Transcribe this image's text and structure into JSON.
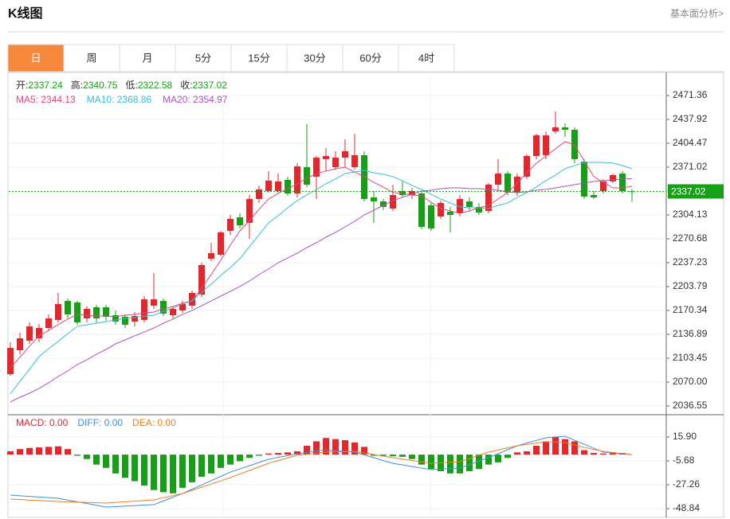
{
  "header": {
    "title": "K线图",
    "link": "基本面分析>"
  },
  "tabs": {
    "items": [
      "日",
      "周",
      "月",
      "5分",
      "15分",
      "30分",
      "60分",
      "4时"
    ],
    "active": 0,
    "active_color": "#f5883b"
  },
  "chart_data": [
    {
      "type": "candlestick",
      "ylim": [
        2025.4,
        2502.57
      ],
      "yticks": [
        2471.36,
        2437.92,
        2404.47,
        2371.02,
        2304.13,
        2270.68,
        2237.23,
        2203.79,
        2170.34,
        2136.89,
        2103.45,
        {
          "value": 2070,
          "label": "2070.00"
        },
        2036.55
      ],
      "grid": true,
      "up_color": "#e8262a",
      "down_color": "#16a016",
      "readout": [
        {
          "label": "开:",
          "value": "2337.24"
        },
        {
          "label": "高:",
          "value": "2340.75"
        },
        {
          "label": "低:",
          "value": "2322.58"
        },
        {
          "label": "收:",
          "value": "2337.02"
        }
      ],
      "readout_value_color": "#16a016",
      "last_price": 2337.02,
      "last_price_color": "#16a016",
      "open": [
        2081.1,
        2114.6,
        2127.9,
        2131.3,
        2145.8,
        2157.0,
        2183.7,
        2181.5,
        2159.2,
        2174.8,
        2174.8,
        2163.6,
        2161.4,
        2154.7,
        2157.0,
        2177.0,
        2183.7,
        2163.6,
        2170.3,
        2177.0,
        2192.6,
        2242.8,
        2248.4,
        2281.8,
        2300.8,
        2293.0,
        2326.4,
        2337.6,
        2337.6,
        2353.2,
        2334.2,
        2371.0,
        2357.7,
        2382.2,
        2371.0,
        2384.4,
        2371.0,
        2387.8,
        2328.7,
        2323.1,
        2313.0,
        2337.6,
        2332.0,
        2334.2,
        2317.5,
        2301.9,
        2308.6,
        2306.4,
        2323.1,
        2315.3,
        2309.7,
        2346.5,
        2362.1,
        2335.4,
        2357.7,
        2386.6,
        2387.8,
        2421.2,
        2426.8,
        2423.4,
        2378.8,
        2332.0,
        2337.6,
        2351.0,
        2362.1,
        2337.24
      ],
      "high": [
        2125.7,
        2139.1,
        2153.6,
        2151.4,
        2164.8,
        2194.9,
        2187.1,
        2183.7,
        2175.9,
        2178.1,
        2178.1,
        2170.3,
        2164.8,
        2168.1,
        2190.4,
        2222.7,
        2187.1,
        2175.9,
        2183.7,
        2198.2,
        2237.2,
        2265.1,
        2281.8,
        2304.1,
        2306.4,
        2332.0,
        2345.4,
        2365.5,
        2362.1,
        2357.7,
        2376.6,
        2431.2,
        2386.6,
        2397.8,
        2393.3,
        2410.0,
        2417.9,
        2393.3,
        2337.6,
        2326.4,
        2346.5,
        2351.0,
        2342.0,
        2337.6,
        2320.9,
        2324.2,
        2315.3,
        2332.0,
        2328.7,
        2320.9,
        2348.7,
        2382.2,
        2365.5,
        2362.1,
        2388.9,
        2417.9,
        2421.2,
        2449.1,
        2432.3,
        2426.8,
        2382.2,
        2337.6,
        2354.3,
        2362.1,
        2365.5,
        2340.75
      ],
      "low": [
        2078.9,
        2109.0,
        2123.5,
        2125.7,
        2142.4,
        2153.6,
        2159.2,
        2150.3,
        2153.6,
        2153.6,
        2155.8,
        2150.3,
        2145.8,
        2148.0,
        2153.6,
        2172.6,
        2162.5,
        2159.2,
        2167.0,
        2172.6,
        2189.3,
        2239.5,
        2246.1,
        2276.3,
        2285.2,
        2270.7,
        2320.9,
        2335.4,
        2335.4,
        2330.9,
        2328.7,
        2343.2,
        2326.4,
        2365.5,
        2367.7,
        2371.0,
        2367.7,
        2323.1,
        2293.0,
        2310.8,
        2309.7,
        2328.7,
        2326.4,
        2284.1,
        2281.8,
        2298.6,
        2279.6,
        2301.9,
        2309.7,
        2304.1,
        2306.4,
        2337.6,
        2332.0,
        2330.9,
        2354.3,
        2382.2,
        2382.2,
        2417.9,
        2413.4,
        2376.6,
        2326.4,
        2326.4,
        2334.2,
        2348.7,
        2334.2,
        2322.58
      ],
      "close": [
        2117.9,
        2131.3,
        2148.0,
        2145.8,
        2159.2,
        2179.3,
        2164.8,
        2153.6,
        2172.6,
        2159.2,
        2161.4,
        2154.7,
        2150.3,
        2162.5,
        2185.9,
        2185.9,
        2165.9,
        2172.6,
        2179.3,
        2194.9,
        2233.9,
        2250.6,
        2279.6,
        2298.6,
        2289.6,
        2326.4,
        2339.8,
        2352.1,
        2351.0,
        2334.2,
        2372.1,
        2346.5,
        2384.4,
        2386.6,
        2384.4,
        2393.3,
        2387.8,
        2326.4,
        2323.1,
        2315.3,
        2332.0,
        2332.0,
        2337.6,
        2287.4,
        2285.2,
        2320.9,
        2304.1,
        2326.4,
        2315.3,
        2307.5,
        2346.5,
        2362.1,
        2335.4,
        2357.7,
        2386.6,
        2415.6,
        2415.6,
        2426.8,
        2423.4,
        2382.2,
        2329.8,
        2328.7,
        2351.0,
        2359.9,
        2337.6,
        2337.02
      ],
      "series": [
        {
          "label": "MA5: 2344.13",
          "color": "#e8457a",
          "values": [
            2090.1,
            2104.6,
            2120.2,
            2134.7,
            2142.4,
            2150.3,
            2158.1,
            2164.8,
            2163.6,
            2162.5,
            2162.5,
            2161.4,
            2163.6,
            2164.8,
            2167.0,
            2168.1,
            2172.6,
            2175.9,
            2180.4,
            2183.7,
            2201.6,
            2220.5,
            2240.6,
            2261.8,
            2281.8,
            2296.3,
            2311.9,
            2326.4,
            2334.2,
            2340.9,
            2347.6,
            2355.4,
            2362.1,
            2365.5,
            2368.8,
            2371.0,
            2364.3,
            2357.7,
            2349.8,
            2343.2,
            2335.4,
            2334.2,
            2332.0,
            2330.9,
            2322.0,
            2313.0,
            2309.7,
            2306.4,
            2309.7,
            2314.2,
            2317.5,
            2326.4,
            2335.4,
            2348.7,
            2363.2,
            2376.6,
            2386.6,
            2396.7,
            2406.7,
            2402.3,
            2379.9,
            2357.7,
            2349.8,
            2342.0,
            2342.0,
            2344.13
          ]
        },
        {
          "label": "MA10: 2368.86",
          "color": "#35bfd6",
          "values": [
            2053.3,
            2071.1,
            2087.8,
            2105.7,
            2116.8,
            2126.8,
            2138.0,
            2148.0,
            2150.3,
            2152.5,
            2154.7,
            2157.0,
            2159.2,
            2160.3,
            2162.5,
            2163.6,
            2169.2,
            2173.7,
            2179.3,
            2183.7,
            2196.0,
            2207.1,
            2219.4,
            2230.5,
            2242.8,
            2259.5,
            2276.3,
            2293.0,
            2303.0,
            2314.2,
            2324.2,
            2332.0,
            2339.8,
            2347.6,
            2354.3,
            2362.1,
            2364.3,
            2366.6,
            2363.2,
            2361.0,
            2357.7,
            2352.1,
            2345.4,
            2339.8,
            2333.1,
            2326.4,
            2320.9,
            2315.3,
            2314.2,
            2314.2,
            2313.0,
            2317.5,
            2320.9,
            2328.7,
            2335.4,
            2343.2,
            2352.1,
            2359.9,
            2368.8,
            2373.2,
            2377.7,
            2377.7,
            2377.7,
            2376.6,
            2373.2,
            2368.86
          ]
        },
        {
          "label": "MA20: 2354.97",
          "color": "#b04fc4",
          "values": [
            2042.2,
            2048.8,
            2054.4,
            2061.1,
            2068.9,
            2077.8,
            2085.6,
            2094.5,
            2101.2,
            2109.0,
            2115.7,
            2123.5,
            2129.1,
            2134.7,
            2140.2,
            2145.8,
            2152.5,
            2158.1,
            2164.8,
            2170.3,
            2177.0,
            2183.7,
            2190.4,
            2197.1,
            2203.8,
            2211.6,
            2220.5,
            2228.3,
            2237.2,
            2243.9,
            2250.6,
            2258.4,
            2265.1,
            2272.9,
            2279.6,
            2287.4,
            2295.2,
            2304.1,
            2310.8,
            2317.5,
            2324.2,
            2328.7,
            2333.1,
            2337.6,
            2338.7,
            2340.9,
            2342.0,
            2342.0,
            2340.9,
            2340.9,
            2339.8,
            2338.7,
            2336.5,
            2335.4,
            2336.5,
            2338.7,
            2339.8,
            2342.0,
            2344.3,
            2346.5,
            2348.7,
            2351.0,
            2352.1,
            2353.2,
            2354.3,
            2354.97
          ]
        }
      ]
    },
    {
      "type": "macd",
      "ylim": [
        -56.75,
        35.32
      ],
      "yticks": [
        {
          "value": 15.9,
          "label": "15.90"
        },
        -5.68,
        -27.26,
        -48.84
      ],
      "histogram": {
        "label": "MACD: 0.00",
        "up_color": "#e8262a",
        "down_color": "#16a016",
        "values": [
          3,
          5,
          6,
          6.5,
          7,
          7.5,
          5,
          -1,
          -4,
          -9,
          -12,
          -17,
          -21,
          -24,
          -28,
          -32,
          -34,
          -35,
          -30,
          -25,
          -20,
          -17,
          -12,
          -9,
          -6,
          -3,
          -1,
          1,
          1.5,
          2,
          3,
          8,
          12,
          15,
          14,
          13,
          11,
          7,
          -1,
          -1,
          -1.5,
          -2,
          -4,
          -9,
          -13,
          -15,
          -17,
          -17,
          -15,
          -13,
          -9,
          -7,
          -3,
          2,
          3,
          8,
          12,
          16,
          14,
          12,
          4,
          1.5,
          1,
          2,
          1.5,
          0
        ]
      },
      "series": [
        {
          "label": "DIFF: 0.00",
          "color": "#3d8fdc",
          "values": [
            -36.6,
            -37.2,
            -37.8,
            -38.3,
            -38.9,
            -39.5,
            -41.1,
            -42.7,
            -44.2,
            -45.8,
            -47.4,
            -47.0,
            -46.5,
            -46.1,
            -45.6,
            -45.2,
            -41.9,
            -38.5,
            -35.2,
            -31.3,
            -27.4,
            -23.6,
            -19.7,
            -15.8,
            -12.9,
            -10.0,
            -7.1,
            -4.2,
            -2.5,
            -0.9,
            0.8,
            2.0,
            3.2,
            4.4,
            3.7,
            2.9,
            2.2,
            -0.3,
            -2.8,
            -5.4,
            -7.9,
            -9.3,
            -10.8,
            -12.2,
            -13.6,
            -13.1,
            -12.7,
            -12.2,
            -9.1,
            -5.9,
            -2.8,
            0.8,
            4.4,
            8.0,
            10.4,
            12.8,
            15.2,
            15.9,
            16.6,
            13.0,
            9.4,
            5.8,
            2.2,
            1.5,
            0.7,
            0
          ]
        },
        {
          "label": "DEA: 0.00",
          "color": "#f07d1a",
          "values": [
            -40.2,
            -40.6,
            -41.1,
            -41.5,
            -42.0,
            -42.4,
            -42.7,
            -43.0,
            -43.2,
            -43.5,
            -43.8,
            -43.2,
            -42.6,
            -42.1,
            -41.5,
            -40.9,
            -39.0,
            -37.1,
            -35.2,
            -32.3,
            -29.4,
            -26.6,
            -23.7,
            -20.8,
            -17.5,
            -14.3,
            -11.0,
            -7.8,
            -5.4,
            -3.0,
            -0.6,
            0.3,
            1.3,
            2.2,
            2.4,
            2.7,
            2.9,
            1.5,
            0.1,
            -1.4,
            -2.8,
            -4.1,
            -5.3,
            -6.6,
            -7.8,
            -7.3,
            -6.9,
            -6.4,
            -3.5,
            -0.7,
            2.2,
            4.1,
            6.1,
            8.0,
            9.2,
            10.4,
            11.6,
            11.3,
            10.9,
            8.7,
            6.5,
            4.7,
            2.9,
            1.9,
            1.0,
            0
          ]
        }
      ]
    }
  ]
}
